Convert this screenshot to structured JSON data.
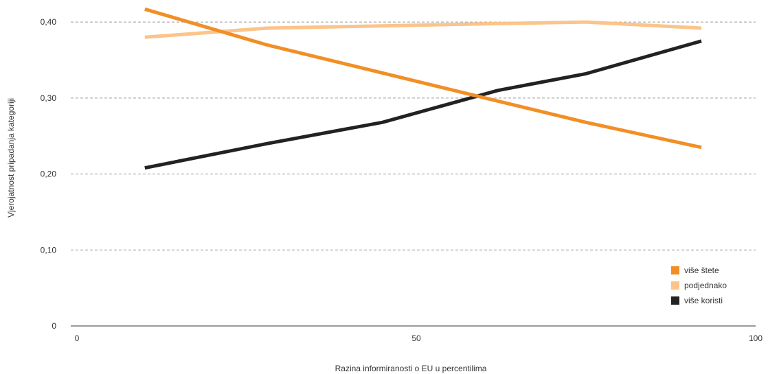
{
  "chart_data": {
    "type": "line",
    "xlabel": "Razina informiranosti o EU u percentilima",
    "ylabel": "Vjerojatnost pripadanja kategoriji",
    "xlim": [
      0,
      100
    ],
    "ylim": [
      0,
      0.42
    ],
    "x_ticks": [
      {
        "value": 0,
        "label": "0"
      },
      {
        "value": 50,
        "label": "50"
      },
      {
        "value": 100,
        "label": "100"
      }
    ],
    "y_ticks": [
      {
        "value": 0,
        "label": "0"
      },
      {
        "value": 0.1,
        "label": "0,10"
      },
      {
        "value": 0.2,
        "label": "0,20"
      },
      {
        "value": 0.3,
        "label": "0,30"
      },
      {
        "value": 0.4,
        "label": "0,40"
      }
    ],
    "grid": "horizontal dashed",
    "legend_position": "bottom-right",
    "series": [
      {
        "name": "više štete",
        "color": "#F18F26",
        "x": [
          10,
          28,
          45,
          62,
          75,
          92
        ],
        "y": [
          0.417,
          0.37,
          0.333,
          0.296,
          0.268,
          0.235
        ]
      },
      {
        "name": "podjednako",
        "color": "#FBC48A",
        "x": [
          10,
          28,
          45,
          62,
          75,
          92
        ],
        "y": [
          0.38,
          0.392,
          0.395,
          0.398,
          0.4,
          0.392
        ]
      },
      {
        "name": "više koristi",
        "color": "#222222",
        "x": [
          10,
          28,
          45,
          62,
          75,
          92
        ],
        "y": [
          0.208,
          0.24,
          0.268,
          0.31,
          0.332,
          0.375
        ]
      }
    ]
  }
}
